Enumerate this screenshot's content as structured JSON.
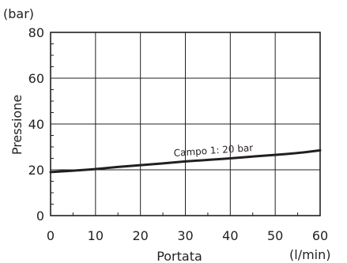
{
  "chart_data": {
    "type": "line",
    "xlabel": "Portata",
    "ylabel": "Pressione",
    "x_unit": "(l/min)",
    "y_unit": "(bar)",
    "xlim": [
      0,
      60
    ],
    "ylim": [
      0,
      80
    ],
    "x_ticks": [
      0,
      10,
      20,
      30,
      40,
      50,
      60
    ],
    "y_ticks": [
      0,
      20,
      40,
      60,
      80
    ],
    "grid": true,
    "series": [
      {
        "name": "Campo 1: 20 bar",
        "x": [
          0,
          5,
          10,
          15,
          20,
          25,
          30,
          35,
          40,
          45,
          50,
          55,
          60
        ],
        "y": [
          19,
          19.6,
          20.3,
          21.3,
          22,
          22.8,
          23.7,
          24.3,
          25,
          25.8,
          26.5,
          27.3,
          28.5
        ],
        "color": "#231f20"
      }
    ],
    "annotation": "Campo 1: 20 bar"
  }
}
